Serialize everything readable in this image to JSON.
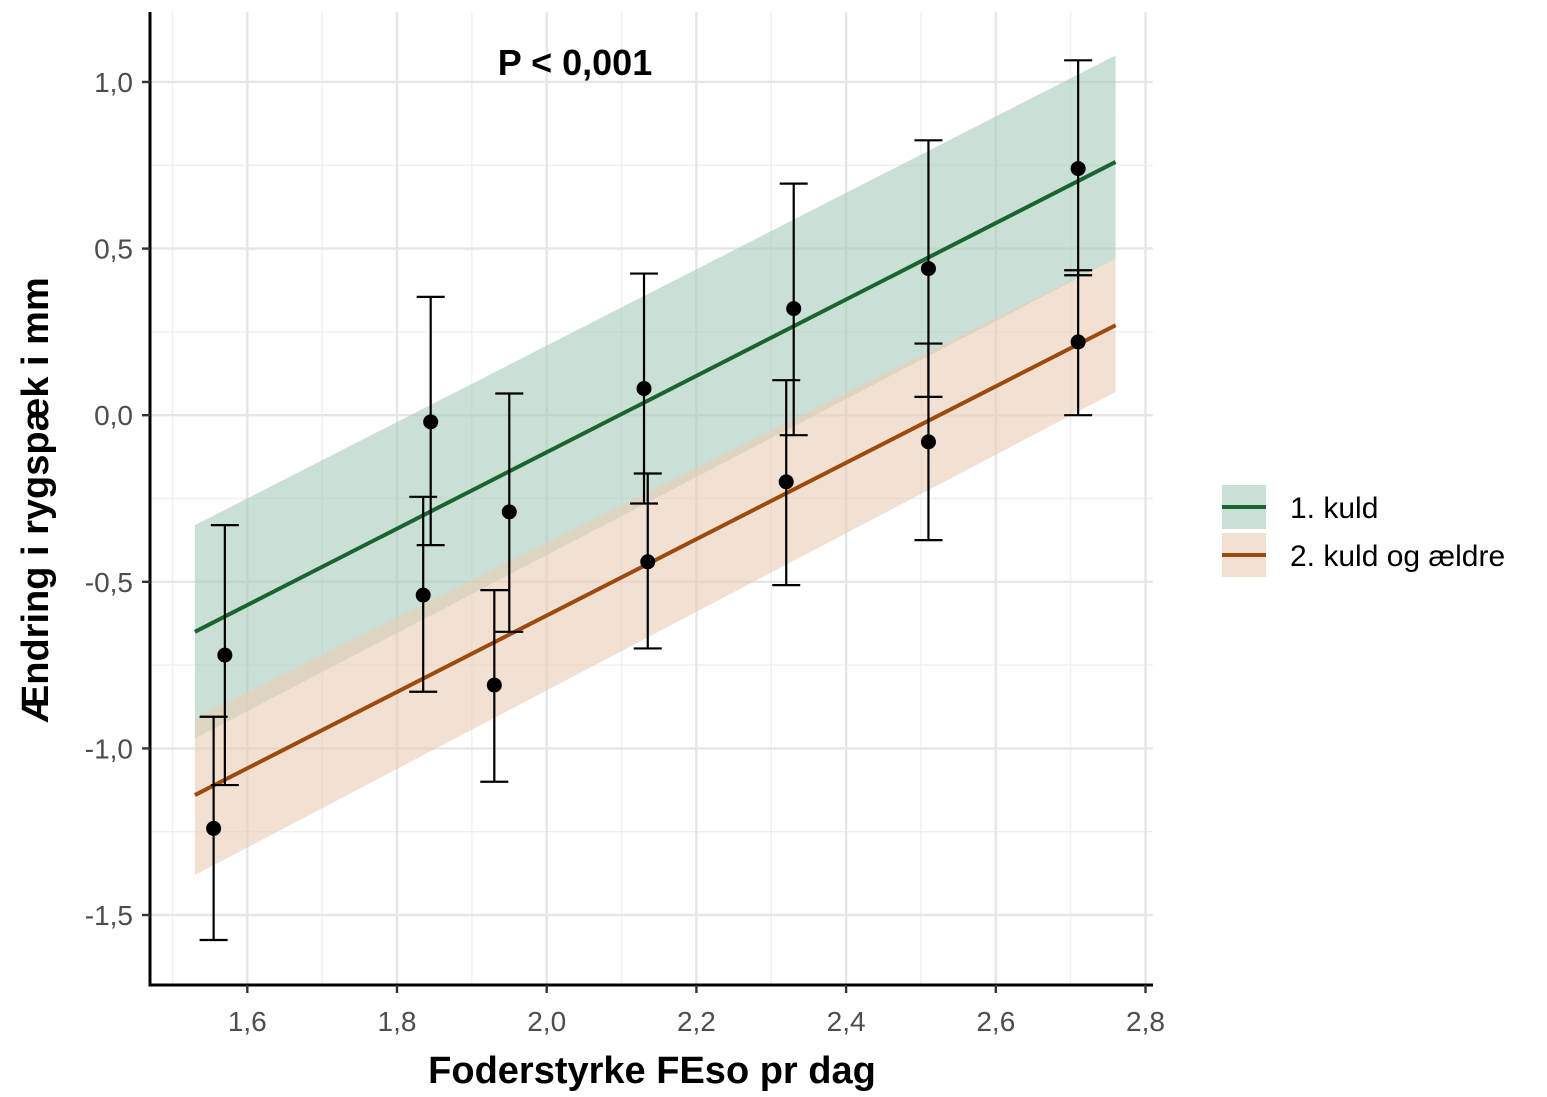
{
  "chart_data": {
    "type": "scatter",
    "title": "",
    "annotation": "P < 0,001",
    "xlabel": "Foderstyrke FEso pr dag",
    "ylabel": "Ændring i rygspæk i mm",
    "xlim": [
      1.47,
      2.81
    ],
    "ylim": [
      -1.71,
      1.21
    ],
    "x_ticks": [
      1.6,
      1.8,
      2.0,
      2.2,
      2.4,
      2.6,
      2.8
    ],
    "x_tick_labels": [
      "1,6",
      "1,8",
      "2,0",
      "2,2",
      "2,4",
      "2,6",
      "2,8"
    ],
    "y_ticks": [
      -1.5,
      -1.0,
      -0.5,
      0.0,
      0.5,
      1.0
    ],
    "y_tick_labels": [
      "-1,5",
      "-1,0",
      "-0,5",
      "0,0",
      "0,5",
      "1,0"
    ],
    "grid": true,
    "legend_position": "right",
    "series": [
      {
        "name": "1. kuld",
        "color": "#1a6431",
        "band_color": "#a9ccb9",
        "line": {
          "x": [
            1.53,
            2.76
          ],
          "y": [
            -0.65,
            0.76
          ]
        },
        "band": {
          "x": [
            1.53,
            2.76
          ],
          "lower": [
            -0.97,
            0.47
          ],
          "upper": [
            -0.33,
            1.08
          ]
        },
        "points": [
          {
            "x": 1.57,
            "y": -0.72,
            "lo": -1.11,
            "hi": -0.33
          },
          {
            "x": 1.845,
            "y": -0.02,
            "lo": -0.39,
            "hi": 0.355
          },
          {
            "x": 1.95,
            "y": -0.29,
            "lo": -0.65,
            "hi": 0.065
          },
          {
            "x": 2.13,
            "y": 0.08,
            "lo": -0.265,
            "hi": 0.425
          },
          {
            "x": 2.33,
            "y": 0.32,
            "lo": -0.06,
            "hi": 0.695
          },
          {
            "x": 2.51,
            "y": 0.44,
            "lo": 0.055,
            "hi": 0.825
          },
          {
            "x": 2.71,
            "y": 0.74,
            "lo": 0.42,
            "hi": 1.065
          }
        ]
      },
      {
        "name": "2. kuld og ældre",
        "color": "#9c4a0d",
        "band_color": "#e9cdb6",
        "line": {
          "x": [
            1.53,
            2.76
          ],
          "y": [
            -1.14,
            0.27
          ]
        },
        "band": {
          "x": [
            1.53,
            2.76
          ],
          "lower": [
            -1.38,
            0.07
          ],
          "upper": [
            -0.91,
            0.47
          ]
        },
        "points": [
          {
            "x": 1.555,
            "y": -1.24,
            "lo": -1.575,
            "hi": -0.905
          },
          {
            "x": 1.835,
            "y": -0.54,
            "lo": -0.83,
            "hi": -0.245
          },
          {
            "x": 1.93,
            "y": -0.81,
            "lo": -1.1,
            "hi": -0.525
          },
          {
            "x": 2.135,
            "y": -0.44,
            "lo": -0.7,
            "hi": -0.175
          },
          {
            "x": 2.32,
            "y": -0.2,
            "lo": -0.51,
            "hi": 0.105
          },
          {
            "x": 2.51,
            "y": -0.08,
            "lo": -0.375,
            "hi": 0.215
          },
          {
            "x": 2.71,
            "y": 0.22,
            "lo": 0.0,
            "hi": 0.435
          }
        ]
      }
    ]
  }
}
